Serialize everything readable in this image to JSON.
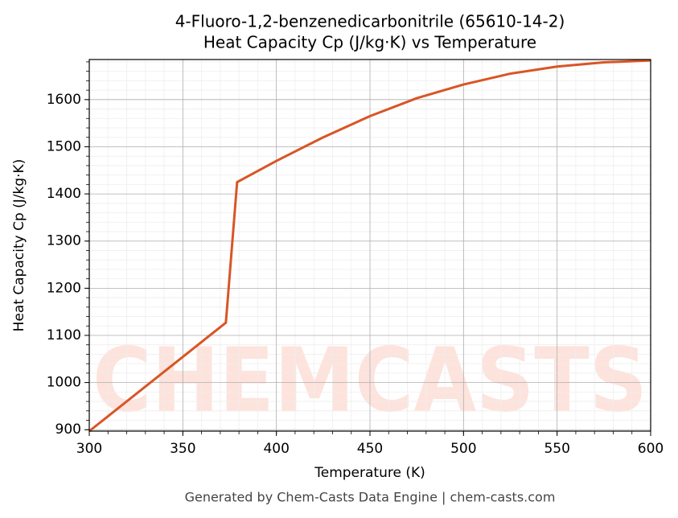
{
  "chart_data": {
    "type": "line",
    "title": "4-Fluoro-1,2-benzenedicarbonitrile (65610-14-2)",
    "subtitle": "Heat Capacity Cp (J/kg·K) vs Temperature",
    "x_label": "Temperature (K)",
    "y_label": "Heat Capacity Cp (J/kg·K)",
    "footer": "Generated by Chem-Casts Data Engine | chem-casts.com",
    "watermark": "CHEMCASTS",
    "x": [
      300,
      373,
      379,
      400,
      425,
      450,
      475,
      500,
      525,
      550,
      575,
      600
    ],
    "series": [
      {
        "name": "Cp",
        "color": "#d95525",
        "values": [
          897,
          1127,
          1425,
          1470,
          1520,
          1565,
          1603,
          1632,
          1655,
          1670,
          1679,
          1683
        ]
      }
    ],
    "xlim": [
      300,
      600
    ],
    "ylim": [
      897,
      1685
    ],
    "xticks": [
      300,
      350,
      400,
      450,
      500,
      550,
      600
    ],
    "yticks": [
      900,
      1000,
      1100,
      1200,
      1300,
      1400,
      1500,
      1600
    ],
    "xminorticks": [
      300,
      310,
      320,
      330,
      340,
      350,
      360,
      370,
      380,
      390,
      400,
      410,
      420,
      430,
      440,
      450,
      460,
      470,
      480,
      490,
      500,
      510,
      520,
      530,
      540,
      550,
      560,
      570,
      580,
      590,
      600
    ],
    "yminorticks": [
      900,
      920,
      940,
      960,
      980,
      1000,
      1020,
      1040,
      1060,
      1080,
      1100,
      1120,
      1140,
      1160,
      1180,
      1200,
      1220,
      1240,
      1260,
      1280,
      1300,
      1320,
      1340,
      1360,
      1380,
      1400,
      1420,
      1440,
      1460,
      1480,
      1500,
      1520,
      1540,
      1560,
      1580,
      1600,
      1620,
      1640,
      1660,
      1680
    ],
    "grid": true
  }
}
